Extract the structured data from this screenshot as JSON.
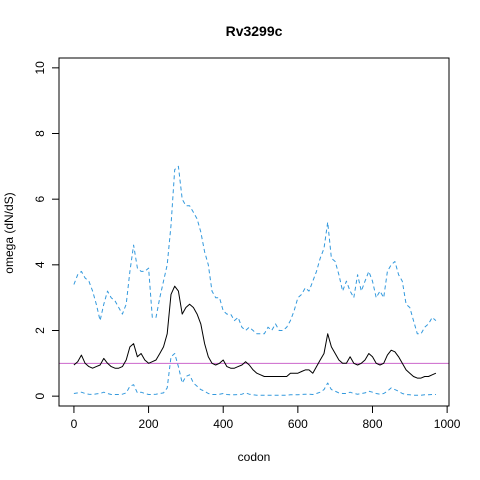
{
  "chart_data": {
    "type": "line",
    "title": "Rv3299c",
    "xlabel": "codon",
    "ylabel": "omega (dN/dS)",
    "xlim": [
      -40,
      1005
    ],
    "ylim": [
      -0.3,
      10.3
    ],
    "xticks": [
      0,
      200,
      400,
      600,
      800,
      1000
    ],
    "yticks": [
      0,
      2,
      4,
      6,
      8,
      10
    ],
    "grid": false,
    "reference_line": {
      "y": 1,
      "color": "#cc66cc"
    },
    "series": [
      {
        "role": "upper",
        "style": "dashed",
        "color": "#3399dd",
        "x": [
          0,
          10,
          20,
          30,
          40,
          50,
          60,
          70,
          80,
          90,
          100,
          110,
          120,
          130,
          140,
          150,
          160,
          170,
          180,
          190,
          200,
          210,
          220,
          230,
          240,
          250,
          260,
          270,
          280,
          290,
          300,
          310,
          320,
          330,
          340,
          350,
          360,
          370,
          380,
          390,
          400,
          410,
          420,
          430,
          440,
          450,
          460,
          470,
          480,
          490,
          500,
          510,
          520,
          530,
          540,
          550,
          560,
          570,
          580,
          590,
          600,
          610,
          620,
          630,
          640,
          650,
          660,
          670,
          680,
          690,
          700,
          710,
          720,
          730,
          740,
          750,
          760,
          770,
          780,
          790,
          800,
          810,
          820,
          830,
          840,
          850,
          860,
          870,
          880,
          890,
          900,
          910,
          920,
          930,
          940,
          950,
          960,
          970
        ],
        "values": [
          3.4,
          3.7,
          3.8,
          3.6,
          3.5,
          3.2,
          2.8,
          2.3,
          2.8,
          3.2,
          3.0,
          2.9,
          2.7,
          2.5,
          2.8,
          3.8,
          4.6,
          3.9,
          3.8,
          3.8,
          3.9,
          2.4,
          2.4,
          3.0,
          3.5,
          4.0,
          5.2,
          6.9,
          7.0,
          6.0,
          5.8,
          5.8,
          5.6,
          5.4,
          5.0,
          4.4,
          4.0,
          3.2,
          3.0,
          3.0,
          2.6,
          2.5,
          2.5,
          2.3,
          2.4,
          2.1,
          2.0,
          2.1,
          2.0,
          1.9,
          1.9,
          1.9,
          2.1,
          2.0,
          2.2,
          2.0,
          2.0,
          2.1,
          2.3,
          2.6,
          3.0,
          3.1,
          3.3,
          3.2,
          3.5,
          3.8,
          4.2,
          4.5,
          5.3,
          4.2,
          4.1,
          3.7,
          3.2,
          3.5,
          3.2,
          3.0,
          3.7,
          3.2,
          3.5,
          3.8,
          3.5,
          3.0,
          3.2,
          3.0,
          3.8,
          4.0,
          4.1,
          3.7,
          3.5,
          2.8,
          2.7,
          2.3,
          1.9,
          1.9,
          2.1,
          2.2,
          2.4,
          2.3
        ]
      },
      {
        "role": "mean",
        "style": "solid",
        "color": "#000000",
        "x": [
          0,
          10,
          20,
          30,
          40,
          50,
          60,
          70,
          80,
          90,
          100,
          110,
          120,
          130,
          140,
          150,
          160,
          170,
          180,
          190,
          200,
          210,
          220,
          230,
          240,
          250,
          260,
          270,
          280,
          290,
          300,
          310,
          320,
          330,
          340,
          350,
          360,
          370,
          380,
          390,
          400,
          410,
          420,
          430,
          440,
          450,
          460,
          470,
          480,
          490,
          500,
          510,
          520,
          530,
          540,
          550,
          560,
          570,
          580,
          590,
          600,
          610,
          620,
          630,
          640,
          650,
          660,
          670,
          680,
          690,
          700,
          710,
          720,
          730,
          740,
          750,
          760,
          770,
          780,
          790,
          800,
          810,
          820,
          830,
          840,
          850,
          860,
          870,
          880,
          890,
          900,
          910,
          920,
          930,
          940,
          950,
          960,
          970
        ],
        "values": [
          0.95,
          1.05,
          1.25,
          1.0,
          0.9,
          0.85,
          0.9,
          0.95,
          1.15,
          1.0,
          0.9,
          0.85,
          0.85,
          0.9,
          1.1,
          1.5,
          1.6,
          1.2,
          1.3,
          1.1,
          1.0,
          1.05,
          1.1,
          1.3,
          1.5,
          1.9,
          3.1,
          3.35,
          3.2,
          2.5,
          2.7,
          2.8,
          2.7,
          2.5,
          2.2,
          1.6,
          1.2,
          1.0,
          0.95,
          1.0,
          1.1,
          0.9,
          0.85,
          0.85,
          0.9,
          0.95,
          1.05,
          0.95,
          0.8,
          0.7,
          0.65,
          0.6,
          0.6,
          0.6,
          0.6,
          0.6,
          0.6,
          0.6,
          0.7,
          0.7,
          0.7,
          0.75,
          0.8,
          0.8,
          0.7,
          0.9,
          1.1,
          1.3,
          1.9,
          1.5,
          1.3,
          1.1,
          1.0,
          1.0,
          1.2,
          1.0,
          0.95,
          1.0,
          1.1,
          1.3,
          1.2,
          1.0,
          0.95,
          1.0,
          1.25,
          1.4,
          1.35,
          1.2,
          1.0,
          0.8,
          0.7,
          0.6,
          0.55,
          0.55,
          0.6,
          0.6,
          0.65,
          0.7
        ]
      },
      {
        "role": "lower",
        "style": "dashed",
        "color": "#3399dd",
        "x": [
          0,
          10,
          20,
          30,
          40,
          50,
          60,
          70,
          80,
          90,
          100,
          110,
          120,
          130,
          140,
          150,
          160,
          170,
          180,
          190,
          200,
          210,
          220,
          230,
          240,
          250,
          260,
          270,
          280,
          290,
          300,
          310,
          320,
          330,
          340,
          350,
          360,
          370,
          380,
          390,
          400,
          410,
          420,
          430,
          440,
          450,
          460,
          470,
          480,
          490,
          500,
          510,
          520,
          530,
          540,
          550,
          560,
          570,
          580,
          590,
          600,
          610,
          620,
          630,
          640,
          650,
          660,
          670,
          680,
          690,
          700,
          710,
          720,
          730,
          740,
          750,
          760,
          770,
          780,
          790,
          800,
          810,
          820,
          830,
          840,
          850,
          860,
          870,
          880,
          890,
          900,
          910,
          920,
          930,
          940,
          950,
          960,
          970
        ],
        "values": [
          0.08,
          0.1,
          0.12,
          0.08,
          0.06,
          0.05,
          0.07,
          0.08,
          0.12,
          0.08,
          0.05,
          0.05,
          0.05,
          0.06,
          0.1,
          0.3,
          0.35,
          0.1,
          0.12,
          0.08,
          0.05,
          0.05,
          0.06,
          0.08,
          0.1,
          0.25,
          1.2,
          1.3,
          0.9,
          0.4,
          0.6,
          0.65,
          0.4,
          0.3,
          0.2,
          0.15,
          0.08,
          0.05,
          0.05,
          0.06,
          0.08,
          0.05,
          0.04,
          0.04,
          0.05,
          0.06,
          0.1,
          0.06,
          0.04,
          0.03,
          0.03,
          0.03,
          0.03,
          0.03,
          0.03,
          0.03,
          0.03,
          0.03,
          0.04,
          0.04,
          0.04,
          0.05,
          0.06,
          0.06,
          0.05,
          0.08,
          0.12,
          0.2,
          0.4,
          0.2,
          0.15,
          0.1,
          0.08,
          0.08,
          0.12,
          0.08,
          0.06,
          0.08,
          0.1,
          0.15,
          0.12,
          0.08,
          0.06,
          0.08,
          0.15,
          0.25,
          0.2,
          0.15,
          0.08,
          0.05,
          0.04,
          0.03,
          0.03,
          0.03,
          0.04,
          0.04,
          0.05,
          0.05
        ]
      }
    ]
  }
}
